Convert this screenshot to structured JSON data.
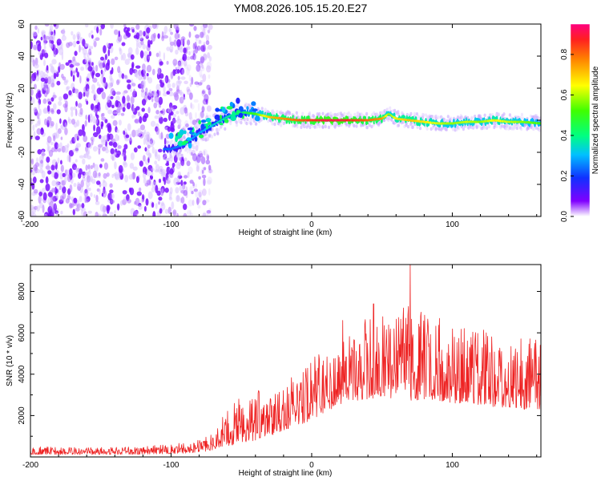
{
  "title": "YM08.2026.105.15.20.E27",
  "chart_data": [
    {
      "type": "heatmap",
      "title": "YM08.2026.105.15.20.E27",
      "xlabel": "Height of straight line (km)",
      "ylabel": "Frequency (Hz)",
      "xlim": [
        -200,
        163
      ],
      "ylim": [
        -60,
        60
      ],
      "xticks": [
        "-200",
        "-100",
        "0",
        "100"
      ],
      "xtick_values": [
        -200,
        -100,
        0,
        100
      ],
      "yticks": [
        "60",
        "40",
        "20",
        "0",
        "-20",
        "-40",
        "-60"
      ],
      "ytick_values": [
        60,
        40,
        20,
        0,
        -20,
        -40,
        -60
      ],
      "colorbar": {
        "label": "Normalized spectral amplitude",
        "range": [
          0,
          0.95
        ],
        "ticks": [
          "0.0",
          "0.2",
          "0.4",
          "0.6",
          "0.8"
        ],
        "tick_values": [
          0.0,
          0.2,
          0.4,
          0.6,
          0.8
        ]
      },
      "ridge": {
        "height_km": [
          -100,
          -90,
          -80,
          -70,
          -60,
          -50,
          -40,
          -30,
          -20,
          -10,
          0,
          10,
          20,
          30,
          40,
          50,
          55,
          60,
          70,
          80,
          90,
          100,
          110,
          120,
          130,
          140,
          150,
          163
        ],
        "frequency_hz": [
          -18,
          -15,
          -8,
          -3,
          2,
          5,
          4,
          2,
          1,
          0,
          0,
          0,
          0,
          0,
          0,
          1,
          4,
          1,
          0,
          -1,
          -2,
          -2,
          -1,
          -1,
          0,
          -1,
          -1,
          -2
        ],
        "amplitude": [
          0.25,
          0.3,
          0.3,
          0.35,
          0.4,
          0.45,
          0.55,
          0.75,
          0.8,
          0.85,
          0.9,
          0.95,
          0.95,
          0.9,
          0.85,
          0.8,
          0.6,
          0.7,
          0.75,
          0.7,
          0.65,
          0.6,
          0.65,
          0.6,
          0.7,
          0.65,
          0.6,
          0.55
        ]
      },
      "noise_region_km": [
        -200,
        -80
      ]
    },
    {
      "type": "line",
      "xlabel": "Height of straight line (km)",
      "ylabel": "SNR (10 * v/v)",
      "xlim": [
        -200,
        163
      ],
      "ylim": [
        0,
        9300
      ],
      "xticks": [
        "-200",
        "-100",
        "0",
        "100"
      ],
      "xtick_values": [
        -200,
        -100,
        0,
        100
      ],
      "yticks": [
        "8000",
        "6000",
        "4000",
        "2000"
      ],
      "ytick_values": [
        8000,
        6000,
        4000,
        2000
      ],
      "series": [
        {
          "name": "SNR",
          "color": "#ee2222",
          "envelope": {
            "x": [
              -200,
              -160,
              -120,
              -90,
              -75,
              -60,
              -50,
              -40,
              -30,
              -20,
              -10,
              0,
              10,
              20,
              30,
              40,
              50,
              60,
              70,
              80,
              90,
              100,
              110,
              120,
              130,
              140,
              150,
              163
            ],
            "base": [
              120,
              110,
              130,
              180,
              250,
              500,
              700,
              800,
              1000,
              1300,
              1500,
              1800,
              2200,
              2500,
              2700,
              2800,
              2900,
              2800,
              2700,
              2800,
              2700,
              2600,
              2600,
              2500,
              2400,
              2400,
              2300,
              2300
            ],
            "peak": [
              500,
              450,
              500,
              700,
              1000,
              2200,
              3000,
              3200,
              3400,
              3700,
              4000,
              4800,
              5500,
              5800,
              6000,
              6800,
              7000,
              7200,
              7300,
              7000,
              6800,
              6500,
              6300,
              6200,
              6000,
              6000,
              5800,
              5800
            ]
          },
          "highlights": [
            {
              "x": 70,
              "y": 9300
            },
            {
              "x": 44,
              "y": 7400
            },
            {
              "x": 22,
              "y": 6600
            }
          ]
        }
      ]
    }
  ]
}
